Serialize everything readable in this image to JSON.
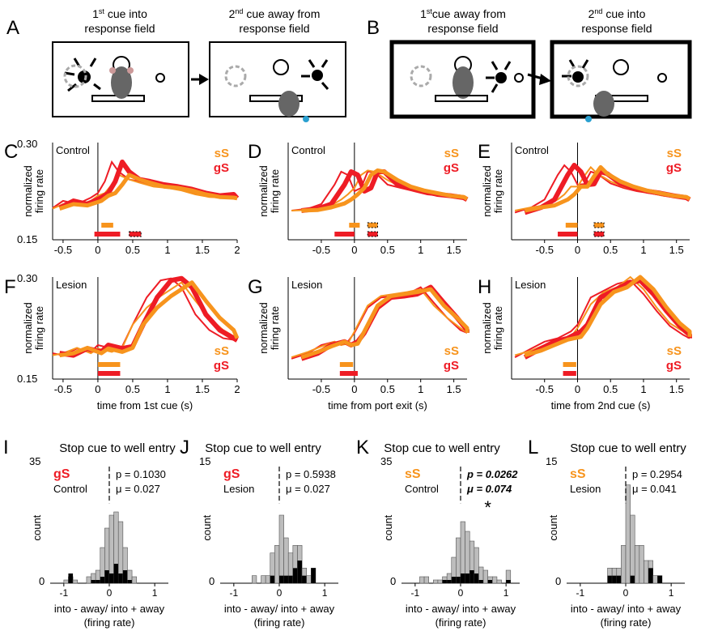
{
  "figure": {
    "panel_letters": [
      "A",
      "B",
      "C",
      "D",
      "E",
      "F",
      "G",
      "H",
      "I",
      "J",
      "K",
      "L"
    ],
    "schematic": {
      "A": {
        "left_caption": "1st cue into",
        "left_sup": "st",
        "left_line1_pre": "1",
        "left_line1_post": " cue into",
        "left_line2": "response field",
        "right_line1_pre": "2",
        "right_sup": "nd",
        "right_line1_post": " cue away from",
        "right_line2": "response field"
      },
      "B": {
        "left_line1_pre": "1",
        "left_sup": "st",
        "left_line1_post": "cue away from",
        "left_line2": "response field",
        "right_line1_pre": "2",
        "right_sup": "nd",
        "right_line1_post": " cue into",
        "right_line2": "response field"
      }
    },
    "colors": {
      "sS": "#f7941d",
      "gS": "#ee1c25",
      "hist_all": "#bdbdbd",
      "hist_sig": "#000000"
    },
    "legend": {
      "sS": "sS",
      "gS": "gS"
    },
    "ylabel_line1": "normalized",
    "ylabel_line2": "firing rate",
    "y_top": "0.30",
    "y_bottom": "0.15",
    "row_labels": {
      "C": "Control",
      "D": "Control",
      "E": "Control",
      "F": "Lesion",
      "G": "Lesion",
      "H": "Lesion"
    },
    "xlabels": {
      "F": "time from 1st cue (s)",
      "G": "time from port exit (s)",
      "H": "time from 2nd cue (s)"
    },
    "hist_title": "Stop cue to well entry",
    "hist_xlabel1": "into - away/ into + away",
    "hist_xlabel2": "(firing rate)",
    "hist_ylabel": "count",
    "star": "*"
  },
  "chart_data": [
    {
      "panel": "C",
      "type": "line",
      "group": "Control",
      "x": [
        -0.7,
        -0.5,
        -0.3,
        -0.1,
        0,
        0.1,
        0.2,
        0.3,
        0.45,
        0.6,
        0.8,
        1.0,
        1.2,
        1.4,
        1.6,
        1.8,
        2.0
      ],
      "xlim": [
        -0.65,
        2.0
      ],
      "ylim": [
        0.15,
        0.3
      ],
      "xticks": [
        "-0.5",
        "0",
        "0.5",
        "1",
        "1.5",
        "2"
      ],
      "xtick_values": [
        -0.5,
        0,
        0.5,
        1,
        1.5,
        2
      ],
      "series": [
        {
          "name": "gS",
          "values": [
            0.199,
            0.21,
            0.205,
            0.215,
            0.222,
            0.24,
            0.27,
            0.255,
            0.243,
            0.24,
            0.235,
            0.232,
            0.228,
            0.222,
            0.218,
            0.22,
            0.214
          ]
        },
        {
          "name": "sS",
          "values": [
            0.198,
            0.205,
            0.203,
            0.21,
            0.218,
            0.222,
            0.235,
            0.25,
            0.243,
            0.238,
            0.232,
            0.23,
            0.226,
            0.22,
            0.216,
            0.215,
            0.214
          ]
        }
      ]
    },
    {
      "panel": "D",
      "type": "line",
      "group": "Control",
      "x": [
        -0.95,
        -0.7,
        -0.5,
        -0.3,
        -0.2,
        -0.1,
        0,
        0.1,
        0.2,
        0.3,
        0.5,
        0.7,
        0.9,
        1.1,
        1.3,
        1.5,
        1.7
      ],
      "xlim": [
        -1.0,
        1.7
      ],
      "ylim": [
        0.15,
        0.3
      ],
      "xticks": [
        "-0.5",
        "0",
        "0.5",
        "1",
        "1.5"
      ],
      "xtick_values": [
        -0.5,
        0,
        0.5,
        1,
        1.5
      ],
      "series": [
        {
          "name": "gS",
          "values": [
            0.195,
            0.198,
            0.205,
            0.235,
            0.255,
            0.25,
            0.225,
            0.23,
            0.255,
            0.255,
            0.235,
            0.23,
            0.225,
            0.22,
            0.218,
            0.215,
            0.212
          ]
        },
        {
          "name": "sS",
          "values": [
            0.195,
            0.196,
            0.2,
            0.206,
            0.212,
            0.22,
            0.23,
            0.25,
            0.257,
            0.255,
            0.242,
            0.232,
            0.226,
            0.222,
            0.218,
            0.216,
            0.213
          ]
        }
      ]
    },
    {
      "panel": "E",
      "type": "line",
      "group": "Control",
      "x": [
        -0.95,
        -0.7,
        -0.5,
        -0.3,
        -0.2,
        -0.1,
        0,
        0.1,
        0.2,
        0.3,
        0.5,
        0.7,
        0.9,
        1.1,
        1.3,
        1.5,
        1.7
      ],
      "xlim": [
        -1.0,
        1.7
      ],
      "ylim": [
        0.15,
        0.3
      ],
      "xticks": [
        "-0.5",
        "0",
        "0.5",
        "1",
        "1.5"
      ],
      "xtick_values": [
        -0.5,
        0,
        0.5,
        1,
        1.5
      ],
      "series": [
        {
          "name": "gS",
          "values": [
            0.192,
            0.2,
            0.212,
            0.25,
            0.265,
            0.255,
            0.235,
            0.236,
            0.255,
            0.252,
            0.237,
            0.23,
            0.225,
            0.222,
            0.218,
            0.215,
            0.212
          ]
        },
        {
          "name": "sS",
          "values": [
            0.195,
            0.2,
            0.203,
            0.212,
            0.22,
            0.232,
            0.232,
            0.248,
            0.262,
            0.252,
            0.24,
            0.232,
            0.226,
            0.222,
            0.218,
            0.216,
            0.213
          ]
        }
      ]
    },
    {
      "panel": "F",
      "type": "line",
      "group": "Lesion",
      "x": [
        -0.7,
        -0.5,
        -0.3,
        -0.1,
        0,
        0.2,
        0.35,
        0.5,
        0.7,
        0.9,
        1.05,
        1.2,
        1.4,
        1.6,
        1.8,
        2.0
      ],
      "xlim": [
        -0.65,
        2.0
      ],
      "ylim": [
        0.15,
        0.3
      ],
      "xticks": [
        "-0.5",
        "0",
        "0.5",
        "1",
        "1.5",
        "2"
      ],
      "xtick_values": [
        -0.5,
        0,
        0.5,
        1,
        1.5,
        2
      ],
      "series": [
        {
          "name": "gS",
          "values": [
            0.188,
            0.185,
            0.195,
            0.19,
            0.2,
            0.195,
            0.198,
            0.23,
            0.27,
            0.295,
            0.298,
            0.285,
            0.245,
            0.222,
            0.21,
            0.207
          ]
        },
        {
          "name": "sS",
          "values": [
            0.185,
            0.188,
            0.196,
            0.188,
            0.195,
            0.19,
            0.196,
            0.23,
            0.255,
            0.272,
            0.282,
            0.292,
            0.265,
            0.24,
            0.222,
            0.21
          ]
        }
      ]
    },
    {
      "panel": "G",
      "type": "line",
      "group": "Lesion",
      "x": [
        -0.95,
        -0.7,
        -0.5,
        -0.3,
        -0.2,
        -0.1,
        0,
        0.2,
        0.4,
        0.6,
        0.8,
        1.0,
        1.2,
        1.4,
        1.6,
        1.7
      ],
      "xlim": [
        -1.0,
        1.7
      ],
      "ylim": [
        0.15,
        0.3
      ],
      "xticks": [
        "-0.5",
        "0",
        "0.5",
        "1",
        "1.5"
      ],
      "xtick_values": [
        -0.5,
        0,
        0.5,
        1,
        1.5
      ],
      "series": [
        {
          "name": "gS",
          "values": [
            0.18,
            0.188,
            0.2,
            0.205,
            0.2,
            0.205,
            0.218,
            0.255,
            0.27,
            0.272,
            0.275,
            0.285,
            0.262,
            0.24,
            0.222,
            0.218
          ]
        },
        {
          "name": "sS",
          "values": [
            0.182,
            0.19,
            0.198,
            0.205,
            0.2,
            0.202,
            0.22,
            0.258,
            0.272,
            0.275,
            0.278,
            0.282,
            0.258,
            0.24,
            0.225,
            0.218
          ]
        }
      ]
    },
    {
      "panel": "H",
      "type": "line",
      "group": "Lesion",
      "x": [
        -0.95,
        -0.7,
        -0.5,
        -0.3,
        -0.2,
        -0.1,
        0,
        0.2,
        0.4,
        0.6,
        0.8,
        1.0,
        1.2,
        1.4,
        1.6,
        1.7
      ],
      "xlim": [
        -1.0,
        1.7
      ],
      "ylim": [
        0.15,
        0.3
      ],
      "xticks": [
        "-0.5",
        "0",
        "0.5",
        "1",
        "1.5"
      ],
      "xtick_values": [
        -0.5,
        0,
        0.5,
        1,
        1.5
      ],
      "series": [
        {
          "name": "gS",
          "values": [
            0.182,
            0.195,
            0.205,
            0.21,
            0.215,
            0.22,
            0.23,
            0.27,
            0.28,
            0.29,
            0.295,
            0.275,
            0.25,
            0.228,
            0.215,
            0.21
          ]
        },
        {
          "name": "sS",
          "values": [
            0.185,
            0.192,
            0.2,
            0.208,
            0.21,
            0.212,
            0.225,
            0.26,
            0.278,
            0.285,
            0.3,
            0.282,
            0.255,
            0.232,
            0.22,
            0.212
          ]
        }
      ]
    },
    {
      "panel": "I",
      "type": "bar",
      "group": "Control",
      "series_label": "gS",
      "label_color": "gS",
      "p_text": "p = 0.1030",
      "mu_text": "μ = 0.027",
      "bold": false,
      "star": false,
      "ymax_label": "35",
      "ymax": 35,
      "xlim": [
        -1.3,
        1.3
      ],
      "xticks": [
        "-1",
        "0",
        "1"
      ],
      "xtick_values": [
        -1,
        0,
        1
      ],
      "bin_width": 0.1,
      "bin_starts": [
        -1.0,
        -0.9,
        -0.8,
        -0.7,
        -0.6,
        -0.5,
        -0.4,
        -0.3,
        -0.2,
        -0.1,
        0.0,
        0.1,
        0.2,
        0.3,
        0.4,
        0.5,
        0.6,
        0.7,
        0.8,
        0.9
      ],
      "all": [
        1,
        2,
        1,
        0,
        0,
        2,
        3,
        4,
        11,
        17,
        21,
        22,
        19,
        11,
        4,
        2,
        0,
        0,
        0,
        0
      ],
      "sig": [
        0,
        3,
        0,
        0,
        0,
        0,
        1,
        1,
        2,
        4,
        3,
        6,
        3,
        4,
        1,
        0,
        0,
        0,
        0,
        0
      ]
    },
    {
      "panel": "J",
      "type": "bar",
      "group": "Lesion",
      "series_label": "gS",
      "label_color": "gS",
      "p_text": "p = 0.5938",
      "mu_text": "μ = 0.027",
      "bold": false,
      "star": false,
      "ymax_label": "15",
      "ymax": 15,
      "xlim": [
        -1.3,
        1.3
      ],
      "xticks": [
        "-1",
        "0",
        "1"
      ],
      "xtick_values": [
        -1,
        0,
        1
      ],
      "bin_width": 0.1,
      "bin_starts": [
        -1.0,
        -0.9,
        -0.8,
        -0.7,
        -0.6,
        -0.5,
        -0.4,
        -0.3,
        -0.2,
        -0.1,
        0.0,
        0.1,
        0.2,
        0.3,
        0.4,
        0.5,
        0.6,
        0.7,
        0.8,
        0.9
      ],
      "all": [
        0,
        0,
        0,
        0,
        1,
        0,
        1,
        1,
        4,
        5,
        9,
        6,
        4,
        5,
        5,
        2,
        1,
        2,
        0,
        0
      ],
      "sig": [
        0,
        0,
        0,
        0,
        0,
        0,
        0,
        0,
        1,
        0,
        1,
        1,
        1,
        2,
        3,
        1,
        0,
        2,
        0,
        0
      ]
    },
    {
      "panel": "K",
      "type": "bar",
      "group": "Control",
      "series_label": "sS",
      "label_color": "sS",
      "p_text": "p = 0.0262",
      "mu_text": "μ = 0.074",
      "bold": true,
      "star": true,
      "ymax_label": "35",
      "ymax": 35,
      "xlim": [
        -1.3,
        1.3
      ],
      "xticks": [
        "-1",
        "0",
        "1"
      ],
      "xtick_values": [
        -1,
        0,
        1
      ],
      "bin_width": 0.1,
      "bin_starts": [
        -1.0,
        -0.9,
        -0.8,
        -0.7,
        -0.6,
        -0.5,
        -0.4,
        -0.3,
        -0.2,
        -0.1,
        0.0,
        0.1,
        0.2,
        0.3,
        0.4,
        0.5,
        0.6,
        0.7,
        0.8,
        0.9,
        1.0,
        1.1
      ],
      "all": [
        0,
        2,
        2,
        0,
        1,
        1,
        2,
        3,
        8,
        14,
        19,
        16,
        13,
        11,
        5,
        4,
        2,
        2,
        1,
        0,
        4,
        0
      ],
      "sig": [
        0,
        0,
        0,
        0,
        0,
        0,
        1,
        1,
        2,
        2,
        3,
        3,
        4,
        3,
        1,
        0,
        1,
        0,
        0,
        0,
        1,
        0
      ]
    },
    {
      "panel": "L",
      "type": "bar",
      "group": "Lesion",
      "series_label": "sS",
      "label_color": "sS",
      "p_text": "p = 0.2954",
      "mu_text": "μ = 0.041",
      "bold": false,
      "star": false,
      "ymax_label": "15",
      "ymax": 15,
      "xlim": [
        -1.3,
        1.3
      ],
      "xticks": [
        "-1",
        "0",
        "1"
      ],
      "xtick_values": [
        -1,
        0,
        1
      ],
      "bin_width": 0.1,
      "bin_starts": [
        -1.0,
        -0.9,
        -0.8,
        -0.7,
        -0.6,
        -0.5,
        -0.4,
        -0.3,
        -0.2,
        -0.1,
        0.0,
        0.1,
        0.2,
        0.3,
        0.4,
        0.5,
        0.6,
        0.7,
        0.8,
        0.9
      ],
      "all": [
        0,
        0,
        0,
        0,
        0,
        0,
        2,
        2,
        2,
        5,
        13,
        9,
        5,
        5,
        3,
        3,
        1,
        1,
        0,
        0
      ],
      "sig": [
        0,
        0,
        0,
        0,
        0,
        0,
        1,
        1,
        1,
        0,
        0,
        1,
        0,
        0,
        0,
        2,
        0,
        1,
        0,
        0
      ]
    }
  ]
}
